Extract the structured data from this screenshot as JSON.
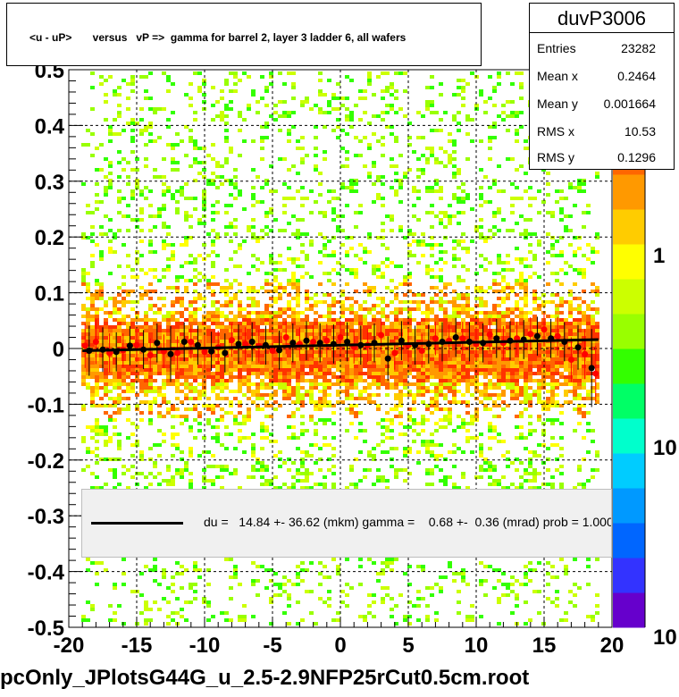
{
  "title": "<u - uP>       versus   vP =>  gamma for barrel 2, layer 3 ladder 6, all wafers",
  "stats": {
    "name": "duvP3006",
    "rows": [
      {
        "key": "Entries",
        "value": "23282"
      },
      {
        "key": "Mean x",
        "value": "0.2464"
      },
      {
        "key": "Mean y",
        "value": "0.001664"
      },
      {
        "key": "RMS x",
        "value": "10.53"
      },
      {
        "key": "RMS y",
        "value": "0.1296"
      }
    ]
  },
  "fit_legend": "du =   14.84 +- 36.62 (mkm) gamma =    0.68 +-  0.36 (mrad) prob = 1.000",
  "footer": "pcOnly_JPlotsG44G_u_2.5-2.9NFP25rCut0.5cm.root",
  "colors": {
    "frame": "#000000",
    "grid": "#000000",
    "fit_line": "#000000",
    "profile_red": "#ff0000",
    "profile_black": "#000000",
    "palette": [
      "#6600cc",
      "#3333ff",
      "#0066ff",
      "#0099ff",
      "#00ccff",
      "#00ffcc",
      "#00ff66",
      "#33ff00",
      "#99ff00",
      "#ccff00",
      "#ffff00",
      "#ffcc00",
      "#ff9900",
      "#ff6600",
      "#ff3300",
      "#ff0000"
    ]
  },
  "chart_data": {
    "type": "heatmap",
    "title": "<u - uP>       versus   vP =>  gamma for barrel 2, layer 3 ladder 6, all wafers",
    "xlabel": "",
    "ylabel": "",
    "xlim": [
      -20,
      20
    ],
    "ylim": [
      -0.5,
      0.5
    ],
    "x_ticks": [
      "-20",
      "-15",
      "-10",
      "-5",
      "0",
      "5",
      "10",
      "15",
      "20"
    ],
    "y_ticks": [
      "-0.5",
      "-0.4",
      "-0.3",
      "-0.2",
      "-0.1",
      "0",
      "0.1",
      "0.2",
      "0.3",
      "0.4",
      "0.5"
    ],
    "z_scale": "log",
    "z_ticks": [
      "1",
      "10",
      "10"
    ],
    "grid": true,
    "fit": {
      "du_mkm": 14.84,
      "du_err_mkm": 36.62,
      "gamma_mrad": 0.68,
      "gamma_err_mrad": 0.36,
      "prob": 1.0
    },
    "fit_line": {
      "x": [
        -19,
        19
      ],
      "y": [
        -0.004,
        0.016
      ]
    },
    "profile_red": {
      "x": [
        -18.8,
        -18,
        -17,
        -16,
        -15,
        -14,
        -13,
        -12,
        -11,
        -10,
        -9,
        -8,
        -7,
        -6,
        -5,
        -4,
        -3,
        -2,
        -1,
        0,
        1,
        2,
        3,
        4,
        5,
        6,
        7,
        8,
        9,
        10,
        11,
        12,
        13,
        14,
        15,
        16,
        17,
        18,
        18.8
      ],
      "y": [
        0.005,
        0.012,
        -0.008,
        -0.003,
        0.006,
        -0.012,
        -0.005,
        -0.008,
        0.012,
        -0.006,
        0.002,
        0.015,
        0.008,
        0.004,
        -0.004,
        0.02,
        0.008,
        0.012,
        0.014,
        0.02,
        0.003,
        0.006,
        0.024,
        -0.008,
        0.006,
        -0.004,
        0.018,
        0.014,
        0.018,
        0.008,
        0.025,
        0.01,
        0.018,
        0.026,
        0.034,
        0.022,
        -0.02,
        -0.01,
        -0.045
      ],
      "yerr": [
        0.04,
        0.04,
        0.035,
        0.03,
        0.03,
        0.03,
        0.03,
        0.03,
        0.03,
        0.03,
        0.03,
        0.03,
        0.03,
        0.03,
        0.03,
        0.03,
        0.03,
        0.03,
        0.03,
        0.03,
        0.03,
        0.03,
        0.03,
        0.03,
        0.03,
        0.03,
        0.03,
        0.03,
        0.03,
        0.03,
        0.03,
        0.03,
        0.03,
        0.03,
        0.03,
        0.035,
        0.04,
        0.045,
        0.05
      ]
    },
    "profile_black": {
      "x": [
        -18.5,
        -17.5,
        -16.5,
        -15.5,
        -14.5,
        -13.5,
        -12.5,
        -11.5,
        -10.5,
        -9.5,
        -8.5,
        -7.5,
        -6.5,
        -5.5,
        -4.5,
        -3.5,
        -2.5,
        -1.5,
        -0.5,
        0.5,
        1.5,
        2.5,
        3.5,
        4.5,
        5.5,
        6.5,
        7.5,
        8.5,
        9.5,
        10.5,
        11.5,
        12.5,
        13.5,
        14.5,
        15.5,
        16.5,
        17.5,
        18.5
      ],
      "y": [
        -0.004,
        -0.002,
        -0.006,
        0.005,
        -0.002,
        0.01,
        -0.01,
        0.012,
        0.006,
        -0.005,
        -0.008,
        0.008,
        0.012,
        0.006,
        -0.003,
        0.01,
        0.014,
        0.01,
        0.008,
        0.012,
        0.006,
        0.01,
        -0.018,
        0.014,
        0.006,
        0.008,
        0.012,
        0.02,
        0.012,
        0.01,
        0.018,
        0.014,
        0.016,
        0.022,
        0.018,
        0.012,
        0.002,
        -0.035
      ],
      "yerr": [
        0.045,
        0.04,
        0.035,
        0.035,
        0.035,
        0.035,
        0.05,
        0.035,
        0.035,
        0.035,
        0.035,
        0.035,
        0.035,
        0.035,
        0.035,
        0.035,
        0.035,
        0.035,
        0.035,
        0.035,
        0.035,
        0.035,
        0.04,
        0.035,
        0.035,
        0.035,
        0.035,
        0.035,
        0.035,
        0.035,
        0.035,
        0.035,
        0.035,
        0.035,
        0.035,
        0.035,
        0.04,
        0.07
      ]
    }
  }
}
